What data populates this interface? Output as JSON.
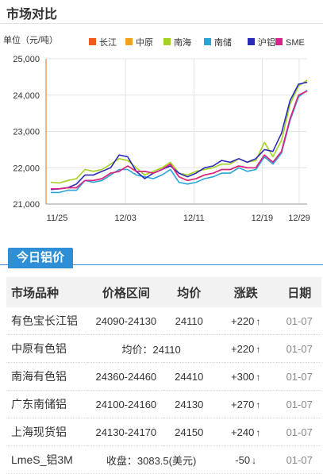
{
  "section_title": "市场对比",
  "tab_label": "今日铝价",
  "colors": {
    "accent": "#2e8fd6",
    "up": "#e0312f",
    "down": "#22a038"
  },
  "chart_data": {
    "type": "line",
    "unit_label": "单位（元/吨）",
    "x_ticks": [
      "11/25",
      "12/03",
      "12/11",
      "12/19",
      "12/29"
    ],
    "ylim": [
      21000,
      25000
    ],
    "y_ticks": [
      21000,
      22000,
      23000,
      24000,
      25000
    ],
    "y_tick_labels": [
      "21,000",
      "22,000",
      "23,000",
      "24,000",
      "25,000"
    ],
    "grid": true,
    "legend_position": "top",
    "series": [
      {
        "name": "长江",
        "color": "#f05a1e",
        "values": [
          21420,
          21420,
          21450,
          21450,
          21650,
          21650,
          21700,
          21850,
          21900,
          22050,
          21900,
          21900,
          21850,
          21950,
          22100,
          21750,
          21650,
          21700,
          21800,
          21850,
          21950,
          21950,
          22050,
          22000,
          22000,
          22350,
          22150,
          22450,
          23350,
          24000,
          24110
        ]
      },
      {
        "name": "中原",
        "color": "#f0a21a",
        "values": [
          21420,
          21420,
          21450,
          21450,
          21650,
          21650,
          21700,
          21850,
          21900,
          22050,
          21900,
          21900,
          21850,
          21950,
          22100,
          21750,
          21650,
          21700,
          21800,
          21850,
          21950,
          21950,
          22050,
          22000,
          22000,
          22350,
          22150,
          22450,
          23350,
          24000,
          24110
        ]
      },
      {
        "name": "南海",
        "color": "#a5d21e",
        "values": [
          21600,
          21580,
          21650,
          21700,
          21950,
          21900,
          21950,
          22100,
          22250,
          22200,
          22000,
          21800,
          21900,
          22000,
          22150,
          21850,
          21800,
          21900,
          21950,
          22000,
          22100,
          22100,
          22250,
          22150,
          22200,
          22700,
          22300,
          22750,
          23750,
          24250,
          24410
        ]
      },
      {
        "name": "南储",
        "color": "#2aa4d8",
        "values": [
          21320,
          21320,
          21380,
          21380,
          21650,
          21600,
          21650,
          21800,
          21950,
          21950,
          21800,
          21750,
          21700,
          21800,
          21950,
          21600,
          21550,
          21600,
          21700,
          21750,
          21850,
          21850,
          22000,
          21900,
          21950,
          22300,
          22100,
          22400,
          23300,
          23950,
          24130
        ]
      },
      {
        "name": "沪铝",
        "color": "#2a2ab8",
        "values": [
          21400,
          21420,
          21450,
          21550,
          21800,
          21800,
          21900,
          22000,
          22350,
          22300,
          21900,
          21700,
          21850,
          21950,
          22050,
          21850,
          21750,
          21850,
          22000,
          22050,
          22200,
          22150,
          22250,
          22150,
          22250,
          22500,
          22450,
          22950,
          23850,
          24300,
          24350
        ]
      },
      {
        "name": "SME",
        "color": "#d8238a",
        "values": [
          21420,
          21420,
          21450,
          21450,
          21650,
          21650,
          21700,
          21850,
          21900,
          22050,
          21900,
          21900,
          21850,
          21950,
          22100,
          21750,
          21650,
          21700,
          21800,
          21850,
          21950,
          21950,
          22050,
          22000,
          22000,
          22350,
          22150,
          22450,
          23350,
          24000,
          24110
        ]
      }
    ]
  },
  "table": {
    "headers": [
      "市场品种",
      "价格区间",
      "均价",
      "涨跌",
      "日期"
    ],
    "rows": [
      {
        "name": "有色宝长江铝",
        "range": "24090-24130",
        "avg": "24110",
        "change": "+220",
        "arrow": "↑",
        "dir": "up",
        "date": "01-07"
      },
      {
        "name": "中原有色铝",
        "merged": "均价：24110",
        "change": "+220",
        "arrow": "↑",
        "dir": "up",
        "date": "01-07"
      },
      {
        "name": "南海有色铝",
        "range": "24360-24460",
        "avg": "24410",
        "change": "+300",
        "arrow": "↑",
        "dir": "up",
        "date": "01-07"
      },
      {
        "name": "广东南储铝",
        "range": "24100-24160",
        "avg": "24130",
        "change": "+270",
        "arrow": "↑",
        "dir": "up",
        "date": "01-07"
      },
      {
        "name": "上海现货铝",
        "range": "24130-24170",
        "avg": "24150",
        "change": "+240",
        "arrow": "↑",
        "dir": "up",
        "date": "01-07"
      },
      {
        "name": "LmeS_铝3M",
        "merged": "收盘：3083.5(美元)",
        "change": "-50",
        "arrow": "↓",
        "dir": "down",
        "date": "01-07"
      }
    ]
  }
}
